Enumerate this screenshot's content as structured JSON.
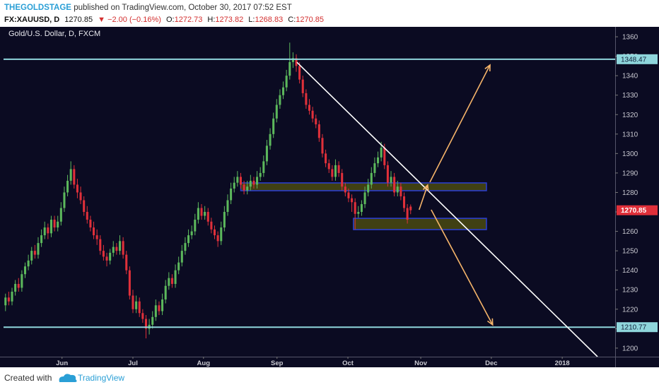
{
  "header": {
    "author": "THEGOLDSTAGE",
    "published": "published on TradingView.com, October 30, 2017 07:52 EST",
    "symbol": "FX:XAUUSD, D",
    "last": "1270.85",
    "change": "▼ −2.00 (−0.16%)",
    "ohlc": [
      {
        "label": "O:",
        "value": "1272.73"
      },
      {
        "label": "H:",
        "value": "1273.82"
      },
      {
        "label": "L:",
        "value": "1268.83"
      },
      {
        "label": "C:",
        "value": "1270.85"
      }
    ]
  },
  "footer": {
    "created": "Created with",
    "brand": "TradingView"
  },
  "chart_data": {
    "type": "candlestick",
    "title": "Gold/U.S. Dollar, D, FXCM",
    "up_color": "#5cb85c",
    "down_color": "#e0303a",
    "grid": false,
    "xlim": [
      -0.6,
      186.6
    ],
    "ylim": [
      1195.6,
      1365.1
    ],
    "yticks": [
      1200,
      1210,
      1220,
      1230,
      1240,
      1250,
      1260,
      1270,
      1280,
      1290,
      1300,
      1310,
      1320,
      1330,
      1340,
      1350,
      1360
    ],
    "xticks": [
      {
        "value": 17.3,
        "label": "Jun"
      },
      {
        "value": 39,
        "label": "Jul"
      },
      {
        "value": 60.6,
        "label": "Aug"
      },
      {
        "value": 83.1,
        "label": "Sep"
      },
      {
        "value": 104.8,
        "label": "Oct"
      },
      {
        "value": 127.1,
        "label": "Nov"
      },
      {
        "value": 148.7,
        "label": "Dec"
      },
      {
        "value": 170.4,
        "label": "2018"
      }
    ],
    "levels": [
      1348.47,
      1210.77
    ],
    "level_color": "#8fd6dc",
    "zones": [
      {
        "x": [
          72,
          147.2
        ],
        "y": [
          1280.9,
          1284.9
        ]
      },
      {
        "x": [
          106.5,
          147.2
        ],
        "y": [
          1260.9,
          1266.7
        ]
      }
    ],
    "trendline": [
      [
        89.2,
        1346.9
      ],
      [
        181.2,
        1195.6
      ]
    ],
    "arrows": [
      [
        [
          126.6,
          1271.1
        ],
        [
          129.2,
          1283.8
        ]
      ],
      [
        [
          129.9,
          1285.3
        ],
        [
          148.3,
          1345.5
        ]
      ],
      [
        [
          130.3,
          1271.1
        ],
        [
          149.1,
          1212.0
        ]
      ]
    ],
    "arrow_color": "#f5b46a",
    "candles": [
      [
        1222,
        1228,
        1219,
        1226
      ],
      [
        1226,
        1229,
        1222,
        1224
      ],
      [
        1224,
        1231,
        1222,
        1229
      ],
      [
        1229,
        1235,
        1227,
        1233
      ],
      [
        1233,
        1236,
        1229,
        1231
      ],
      [
        1231,
        1240,
        1229,
        1238
      ],
      [
        1238,
        1244,
        1236,
        1242
      ],
      [
        1242,
        1248,
        1240,
        1245
      ],
      [
        1245,
        1252,
        1243,
        1250
      ],
      [
        1250,
        1253,
        1246,
        1248
      ],
      [
        1248,
        1257,
        1246,
        1254
      ],
      [
        1254,
        1261,
        1252,
        1258
      ],
      [
        1258,
        1265,
        1256,
        1262
      ],
      [
        1262,
        1264,
        1256,
        1259
      ],
      [
        1259,
        1268,
        1257,
        1266
      ],
      [
        1266,
        1268,
        1260,
        1262
      ],
      [
        1262,
        1268,
        1260,
        1265
      ],
      [
        1265,
        1275,
        1263,
        1272
      ],
      [
        1272,
        1283,
        1270,
        1280
      ],
      [
        1280,
        1289,
        1278,
        1286
      ],
      [
        1286,
        1296,
        1284,
        1292
      ],
      [
        1292,
        1294,
        1282,
        1284
      ],
      [
        1284,
        1287,
        1277,
        1280
      ],
      [
        1280,
        1283,
        1274,
        1276
      ],
      [
        1276,
        1278,
        1268,
        1270
      ],
      [
        1270,
        1273,
        1264,
        1266
      ],
      [
        1266,
        1268,
        1260,
        1262
      ],
      [
        1262,
        1265,
        1256,
        1258
      ],
      [
        1258,
        1261,
        1253,
        1256
      ],
      [
        1256,
        1258,
        1248,
        1250
      ],
      [
        1250,
        1253,
        1245,
        1247
      ],
      [
        1247,
        1249,
        1242,
        1245
      ],
      [
        1245,
        1251,
        1243,
        1249
      ],
      [
        1249,
        1255,
        1247,
        1252
      ],
      [
        1252,
        1254,
        1248,
        1250
      ],
      [
        1250,
        1258,
        1248,
        1255
      ],
      [
        1255,
        1257,
        1246,
        1248
      ],
      [
        1248,
        1250,
        1238,
        1240
      ],
      [
        1240,
        1242,
        1225,
        1227
      ],
      [
        1227,
        1230,
        1218,
        1220
      ],
      [
        1220,
        1227,
        1218,
        1224
      ],
      [
        1224,
        1226,
        1216,
        1218
      ],
      [
        1218,
        1220,
        1213,
        1215
      ],
      [
        1215,
        1217,
        1205,
        1210
      ],
      [
        1210,
        1215,
        1207,
        1212
      ],
      [
        1212,
        1219,
        1210,
        1216
      ],
      [
        1216,
        1225,
        1214,
        1222
      ],
      [
        1222,
        1224,
        1217,
        1219
      ],
      [
        1219,
        1228,
        1217,
        1225
      ],
      [
        1225,
        1235,
        1223,
        1232
      ],
      [
        1232,
        1239,
        1230,
        1236
      ],
      [
        1236,
        1238,
        1231,
        1233
      ],
      [
        1233,
        1243,
        1231,
        1240
      ],
      [
        1240,
        1247,
        1238,
        1244
      ],
      [
        1244,
        1253,
        1242,
        1250
      ],
      [
        1250,
        1257,
        1248,
        1254
      ],
      [
        1254,
        1261,
        1252,
        1258
      ],
      [
        1258,
        1263,
        1256,
        1260
      ],
      [
        1260,
        1269,
        1258,
        1266
      ],
      [
        1266,
        1275,
        1264,
        1272
      ],
      [
        1272,
        1274,
        1266,
        1268
      ],
      [
        1268,
        1273,
        1266,
        1270
      ],
      [
        1270,
        1272,
        1263,
        1265
      ],
      [
        1265,
        1267,
        1259,
        1261
      ],
      [
        1261,
        1263,
        1256,
        1258
      ],
      [
        1258,
        1260,
        1252,
        1255
      ],
      [
        1255,
        1265,
        1253,
        1262
      ],
      [
        1262,
        1273,
        1260,
        1270
      ],
      [
        1270,
        1279,
        1268,
        1276
      ],
      [
        1276,
        1285,
        1274,
        1282
      ],
      [
        1282,
        1288,
        1280,
        1285
      ],
      [
        1285,
        1291,
        1283,
        1288
      ],
      [
        1288,
        1290,
        1282,
        1284
      ],
      [
        1284,
        1286,
        1279,
        1281
      ],
      [
        1281,
        1286,
        1279,
        1283
      ],
      [
        1283,
        1289,
        1281,
        1286
      ],
      [
        1286,
        1288,
        1282,
        1284
      ],
      [
        1284,
        1291,
        1282,
        1288
      ],
      [
        1288,
        1293,
        1286,
        1290
      ],
      [
        1290,
        1299,
        1288,
        1296
      ],
      [
        1296,
        1307,
        1294,
        1304
      ],
      [
        1304,
        1313,
        1302,
        1310
      ],
      [
        1310,
        1321,
        1308,
        1318
      ],
      [
        1318,
        1328,
        1316,
        1325
      ],
      [
        1325,
        1333,
        1323,
        1330
      ],
      [
        1330,
        1337,
        1328,
        1334
      ],
      [
        1334,
        1343,
        1332,
        1340
      ],
      [
        1340,
        1357,
        1338,
        1347
      ],
      [
        1347,
        1352,
        1344,
        1349
      ],
      [
        1349,
        1351,
        1342,
        1345
      ],
      [
        1345,
        1347,
        1336,
        1338
      ],
      [
        1338,
        1340,
        1329,
        1331
      ],
      [
        1331,
        1333,
        1323,
        1325
      ],
      [
        1325,
        1328,
        1320,
        1322
      ],
      [
        1322,
        1324,
        1316,
        1318
      ],
      [
        1318,
        1320,
        1313,
        1315
      ],
      [
        1315,
        1317,
        1306,
        1308
      ],
      [
        1308,
        1310,
        1298,
        1300
      ],
      [
        1300,
        1302,
        1293,
        1295
      ],
      [
        1295,
        1297,
        1290,
        1292
      ],
      [
        1292,
        1294,
        1286,
        1288
      ],
      [
        1288,
        1297,
        1286,
        1294
      ],
      [
        1294,
        1296,
        1288,
        1290
      ],
      [
        1290,
        1292,
        1281,
        1283
      ],
      [
        1283,
        1285,
        1278,
        1280
      ],
      [
        1280,
        1282,
        1275,
        1277
      ],
      [
        1277,
        1279,
        1270,
        1275
      ],
      [
        1275,
        1277,
        1261,
        1269
      ],
      [
        1269,
        1273,
        1267,
        1270
      ],
      [
        1270,
        1276,
        1268,
        1274
      ],
      [
        1274,
        1283,
        1272,
        1280
      ],
      [
        1280,
        1287,
        1278,
        1284
      ],
      [
        1284,
        1293,
        1282,
        1290
      ],
      [
        1290,
        1298,
        1288,
        1295
      ],
      [
        1295,
        1301,
        1293,
        1298
      ],
      [
        1298,
        1306,
        1296,
        1303
      ],
      [
        1303,
        1305,
        1292,
        1294
      ],
      [
        1294,
        1296,
        1283,
        1285
      ],
      [
        1285,
        1291,
        1283,
        1288
      ],
      [
        1288,
        1290,
        1278,
        1280
      ],
      [
        1280,
        1286,
        1278,
        1283
      ],
      [
        1283,
        1285,
        1276,
        1278
      ],
      [
        1278,
        1280,
        1270,
        1272
      ],
      [
        1272,
        1274,
        1264,
        1266
      ],
      [
        1272.73,
        1273.82,
        1268.83,
        1270.85
      ]
    ]
  }
}
